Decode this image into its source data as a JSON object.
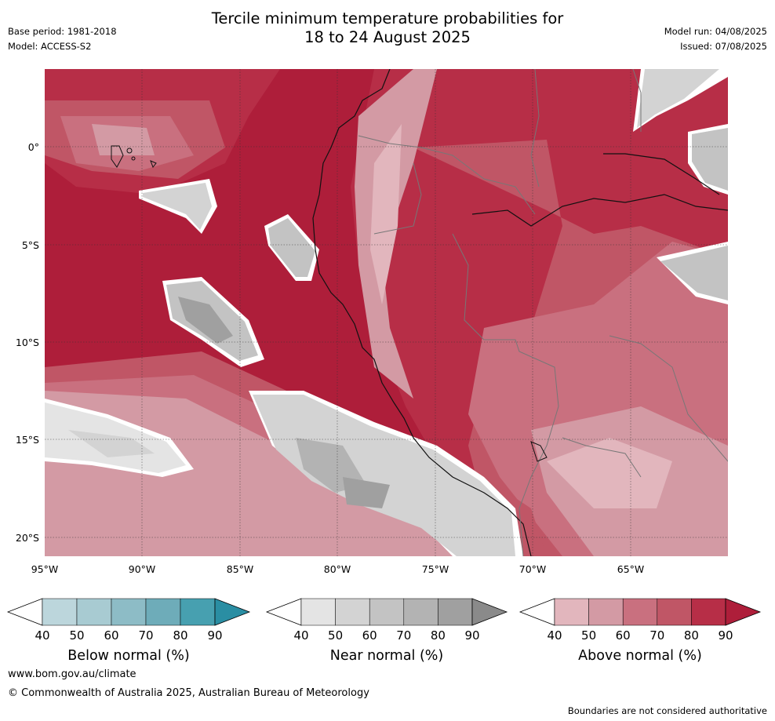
{
  "header": {
    "title_line1": "Tercile minimum temperature probabilities for",
    "title_line2": "18 to 24 August 2025",
    "base_period": "Base period: 1981-2018",
    "model": "Model: ACCESS-S2",
    "model_run": "Model run: 04/08/2025",
    "issued": "Issued: 07/08/2025"
  },
  "map": {
    "lat_labels": [
      "0°",
      "5°S",
      "10°S",
      "15°S",
      "20°S"
    ],
    "lon_labels": [
      "95°W",
      "90°W",
      "85°W",
      "80°W",
      "75°W",
      "70°W",
      "65°W"
    ],
    "dominant_category": "above normal",
    "gridlines": "dotted"
  },
  "colorbars": [
    {
      "name": "below",
      "title": "Below normal (%)",
      "ticks": [
        "40",
        "50",
        "60",
        "70",
        "80",
        "90"
      ],
      "colors": [
        "#bcd6dc",
        "#a8cbd2",
        "#8dbcc6",
        "#6eacb9",
        "#47a0b0",
        "#2a8ea3"
      ]
    },
    {
      "name": "near",
      "title": "Near normal (%)",
      "ticks": [
        "40",
        "50",
        "60",
        "70",
        "80",
        "90"
      ],
      "colors": [
        "#e4e4e4",
        "#d3d3d3",
        "#c3c3c3",
        "#b3b3b3",
        "#a0a0a0",
        "#8a8a8a"
      ]
    },
    {
      "name": "above",
      "title": "Above normal (%)",
      "ticks": [
        "40",
        "50",
        "60",
        "70",
        "80",
        "90"
      ],
      "colors": [
        "#e2b6bd",
        "#d39aa4",
        "#c9707f",
        "#c05666",
        "#b72e47",
        "#ae1e3a"
      ]
    }
  ],
  "footer": {
    "url": "www.bom.gov.au/climate",
    "copyright": "© Commonwealth of Australia 2025, Australian Bureau of Meteorology",
    "disclaimer": "Boundaries are not considered authoritative"
  }
}
